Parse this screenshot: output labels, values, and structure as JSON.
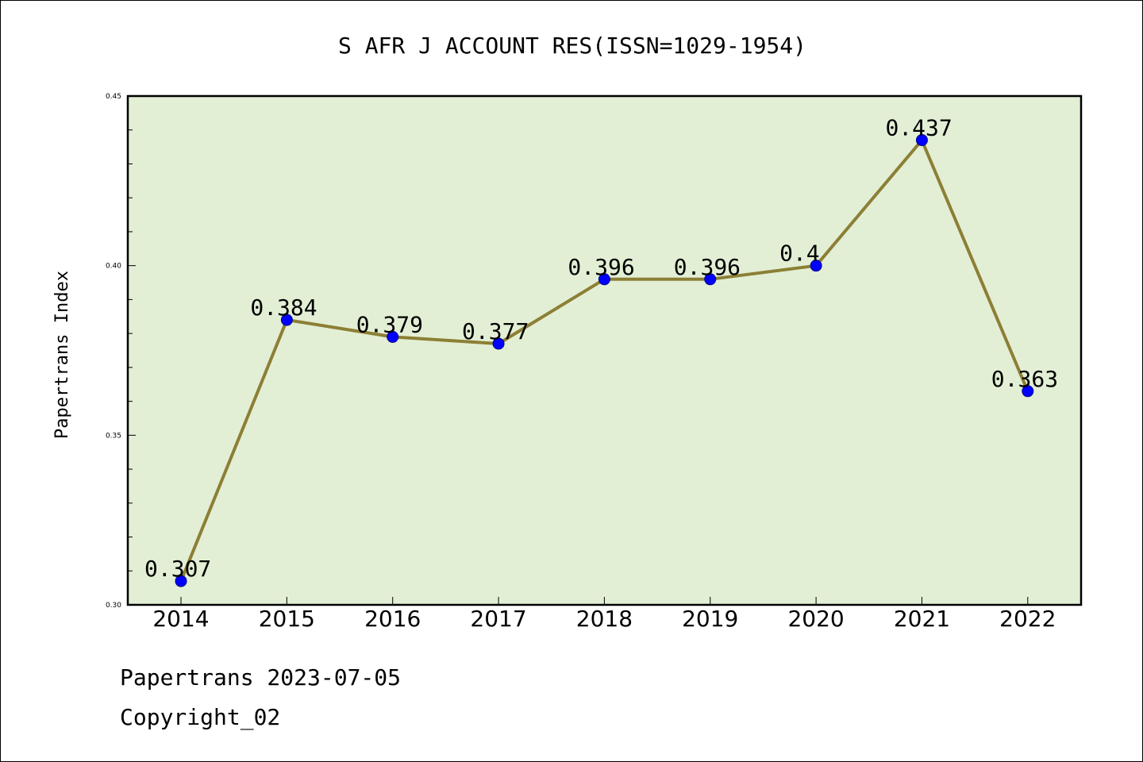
{
  "chart_data": {
    "type": "line",
    "title": "S AFR J ACCOUNT RES(ISSN=1029-1954)",
    "xlabel": "",
    "ylabel": "Papertrans Index",
    "categories": [
      "2014",
      "2015",
      "2016",
      "2017",
      "2018",
      "2019",
      "2020",
      "2021",
      "2022"
    ],
    "values": [
      0.307,
      0.384,
      0.379,
      0.377,
      0.396,
      0.396,
      0.4,
      0.437,
      0.363
    ],
    "data_labels": [
      "0.307",
      "0.384",
      "0.379",
      "0.377",
      "0.396",
      "0.396",
      "0.4",
      "0.437",
      "0.363"
    ],
    "ylim": [
      0.3,
      0.45
    ],
    "yticks": [
      "0.30",
      "0.35",
      "0.40",
      "0.45"
    ],
    "yticks_values": [
      0.3,
      0.35,
      0.4,
      0.45
    ],
    "grid": false,
    "colors": {
      "plot_background": "#e2efd5",
      "line": "#8c7f35",
      "marker": "#0000ff",
      "marker_edge": "#00008b"
    }
  },
  "footer": {
    "date_line": "Papertrans 2023-07-05",
    "copyright": "Copyright_02"
  }
}
